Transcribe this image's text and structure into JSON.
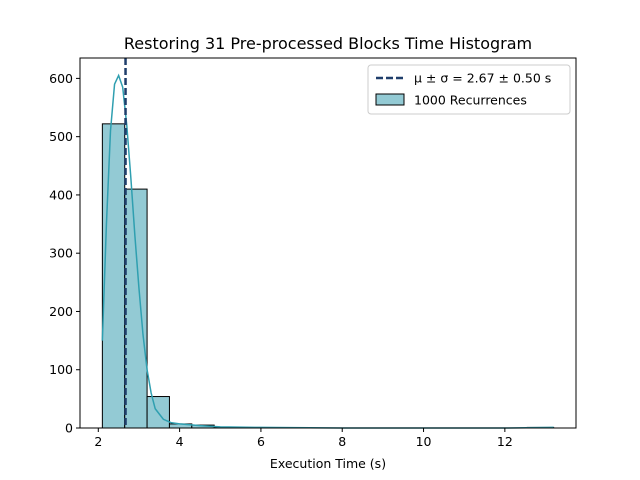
{
  "chart_data": {
    "type": "bar",
    "title": "Restoring 31 Pre-processed Blocks Time Histogram",
    "xlabel": "Execution Time (s)",
    "ylabel": "",
    "xlim": [
      1.55,
      13.75
    ],
    "ylim": [
      0,
      635
    ],
    "xticks": [
      2,
      4,
      6,
      8,
      10,
      12
    ],
    "yticks": [
      0,
      100,
      200,
      300,
      400,
      500,
      600
    ],
    "bins": [
      {
        "x0": 2.1,
        "x1": 2.65,
        "count": 522
      },
      {
        "x0": 2.65,
        "x1": 3.2,
        "count": 410
      },
      {
        "x0": 3.2,
        "x1": 3.75,
        "count": 54
      },
      {
        "x0": 3.75,
        "x1": 4.3,
        "count": 7
      },
      {
        "x0": 4.3,
        "x1": 4.85,
        "count": 5
      },
      {
        "x0": 4.85,
        "x1": 5.4,
        "count": 1
      },
      {
        "x0": 5.4,
        "x1": 5.95,
        "count": 0
      },
      {
        "x0": 5.95,
        "x1": 6.5,
        "count": 0
      },
      {
        "x0": 6.5,
        "x1": 7.05,
        "count": 0
      },
      {
        "x0": 7.05,
        "x1": 7.6,
        "count": 0
      },
      {
        "x0": 7.6,
        "x1": 8.15,
        "count": 0
      },
      {
        "x0": 8.15,
        "x1": 8.7,
        "count": 0
      },
      {
        "x0": 8.7,
        "x1": 9.25,
        "count": 0
      },
      {
        "x0": 9.25,
        "x1": 9.8,
        "count": 0
      },
      {
        "x0": 9.8,
        "x1": 10.35,
        "count": 0
      },
      {
        "x0": 10.35,
        "x1": 10.9,
        "count": 0
      },
      {
        "x0": 10.9,
        "x1": 11.45,
        "count": 0
      },
      {
        "x0": 11.45,
        "x1": 12.0,
        "count": 0
      },
      {
        "x0": 12.0,
        "x1": 12.55,
        "count": 0
      },
      {
        "x0": 12.55,
        "x1": 13.2,
        "count": 1
      }
    ],
    "kde": {
      "x": [
        2.1,
        2.2,
        2.3,
        2.4,
        2.5,
        2.6,
        2.7,
        2.8,
        2.9,
        3.0,
        3.1,
        3.2,
        3.3,
        3.4,
        3.6,
        3.8,
        4.0,
        4.5,
        5.0,
        6.0,
        8.0,
        10.0,
        12.0,
        13.2
      ],
      "y": [
        150,
        350,
        510,
        590,
        605,
        585,
        520,
        430,
        330,
        240,
        160,
        100,
        60,
        33,
        15,
        9,
        7,
        4,
        2,
        1,
        0,
        0,
        0,
        1
      ]
    },
    "mean_line": {
      "x": 2.67,
      "label": "μ ± σ = 2.67 ± 0.50 s"
    },
    "legend": {
      "placement": "top-right",
      "entries": [
        "μ ± σ = 2.67 ± 0.50 s",
        "1000 Recurrences"
      ]
    },
    "colors": {
      "bar_fill": "#93cad4",
      "bar_edge": "#000000",
      "kde": "#2f9fb0",
      "mean_line": "#1f3e6b"
    },
    "grid": false
  }
}
